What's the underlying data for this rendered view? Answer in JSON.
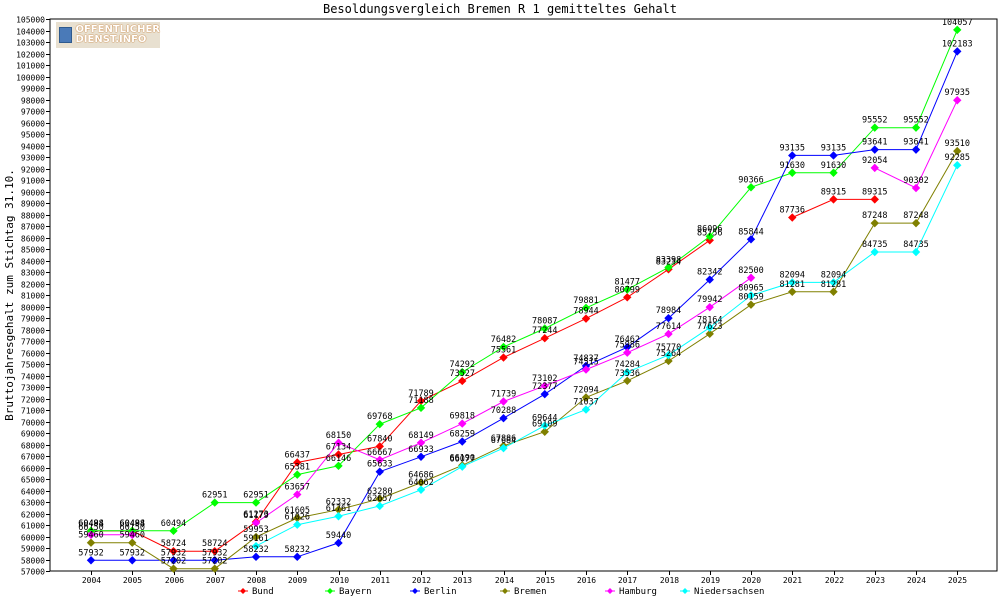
{
  "logo": {
    "line1": "OFFENTLICHER",
    "line2": "DIENST.INFO"
  },
  "chart_data": {
    "type": "line",
    "title": "Besoldungsvergleich Bremen R 1 gemitteltes Gehalt",
    "xlabel": "",
    "ylabel": "Bruttojahresgehalt zum Stichtag 31.10.",
    "x": [
      "2004",
      "2005",
      "2006",
      "2007",
      "2008",
      "2009",
      "2010",
      "2011",
      "2012",
      "2013",
      "2014",
      "2015",
      "2016",
      "2017",
      "2018",
      "2019",
      "2020",
      "2021",
      "2022",
      "2023",
      "2024",
      "2025"
    ],
    "ylim": [
      57000,
      105000
    ],
    "ytick_step": 1000,
    "grid": false,
    "legend_position": "bottom",
    "series": [
      {
        "name": "Bund",
        "color": "#ff0000",
        "values": [
          60488,
          60488,
          58724,
          58724,
          61273,
          66437,
          67134,
          67840,
          71789,
          73527,
          75561,
          77244,
          78944,
          80799,
          83234,
          85756,
          null,
          87736,
          89315,
          89315,
          null,
          null
        ],
        "labels": [
          "60488",
          "60488",
          "58724",
          "58724",
          "61273",
          "66437",
          "67134",
          "67840",
          "71789",
          "73527",
          "75561",
          "77244",
          "78944",
          "80799",
          "83234",
          "85756",
          null,
          "87736",
          "89315",
          "89315",
          null,
          null
        ]
      },
      {
        "name": "Bayern",
        "color": "#00ff00",
        "values": [
          60494,
          60494,
          60494,
          62951,
          62951,
          65381,
          66146,
          69768,
          71188,
          74292,
          76482,
          78087,
          79881,
          81477,
          83398,
          86096,
          90366,
          91630,
          91630,
          95552,
          95552,
          104057
        ],
        "labels": [
          "60494",
          "60494",
          "60494",
          "62951",
          "62951",
          "65381",
          "66146",
          "69768",
          "71188",
          "74292",
          "76482",
          "78087",
          "79881",
          "81477",
          "83398",
          "86096",
          "90366",
          "91630",
          "91630",
          "95552",
          "95552",
          "104057"
        ]
      },
      {
        "name": "Berlin",
        "color": "#0000ff",
        "values": [
          57932,
          57932,
          57932,
          57932,
          58232,
          58232,
          59440,
          65633,
          66933,
          68259,
          70288,
          72377,
          74837,
          76462,
          78984,
          82342,
          85844,
          93135,
          93135,
          93641,
          93641,
          102183
        ],
        "labels": [
          "57932",
          "57932",
          "57932",
          "57932",
          "58232",
          "58232",
          "59440",
          "65633",
          "66933",
          "68259",
          "70288",
          "72377",
          "74837",
          "76462",
          "78984",
          "82342",
          "85844",
          "93135",
          "93135",
          "93641",
          "93641",
          "102183"
        ]
      },
      {
        "name": "Bremen",
        "color": "#808000",
        "values": [
          59460,
          59460,
          57202,
          57202,
          59953,
          61605,
          62332,
          63280,
          64686,
          66190,
          67886,
          69109,
          72094,
          73536,
          75264,
          77623,
          80159,
          81281,
          81281,
          87248,
          87248,
          93510
        ],
        "labels": [
          "59460",
          "59460",
          "57202",
          "57202",
          "59953",
          "61605",
          "62332",
          "63280",
          "64686",
          "66190",
          "67886",
          "69109",
          "72094",
          "73536",
          "75264",
          "77623",
          "80159",
          "81281",
          "81281",
          "87248",
          "87248",
          "93510"
        ]
      },
      {
        "name": "Hamburg",
        "color": "#ff00ff",
        "values": [
          60150,
          60150,
          null,
          null,
          61179,
          63657,
          68150,
          66667,
          68149,
          69818,
          71739,
          73102,
          74515,
          75986,
          77614,
          79942,
          82500,
          null,
          null,
          92054,
          90302,
          97935
        ],
        "labels": [
          "60150",
          "60150",
          null,
          null,
          "61179",
          "63657",
          "68150",
          "66667",
          "68149",
          "69818",
          "71739",
          "73102",
          "74515",
          "75986",
          "77614",
          "79942",
          "82500",
          null,
          null,
          "92054",
          "90302",
          "97935"
        ]
      },
      {
        "name": "Niedersachsen",
        "color": "#00ffff",
        "values": [
          null,
          null,
          null,
          null,
          59161,
          61026,
          61761,
          62657,
          64062,
          66077,
          67684,
          69644,
          71037,
          74284,
          75770,
          78164,
          80965,
          82094,
          82094,
          84735,
          84735,
          92285
        ],
        "labels": [
          null,
          null,
          null,
          null,
          "59161",
          "61026",
          "61761",
          "62657",
          "64062",
          "66077",
          "67684",
          "69644",
          "71037",
          "74284",
          "75770",
          "78164",
          "80965",
          "82094",
          "82094",
          "84735",
          "84735",
          "92285"
        ]
      }
    ]
  }
}
